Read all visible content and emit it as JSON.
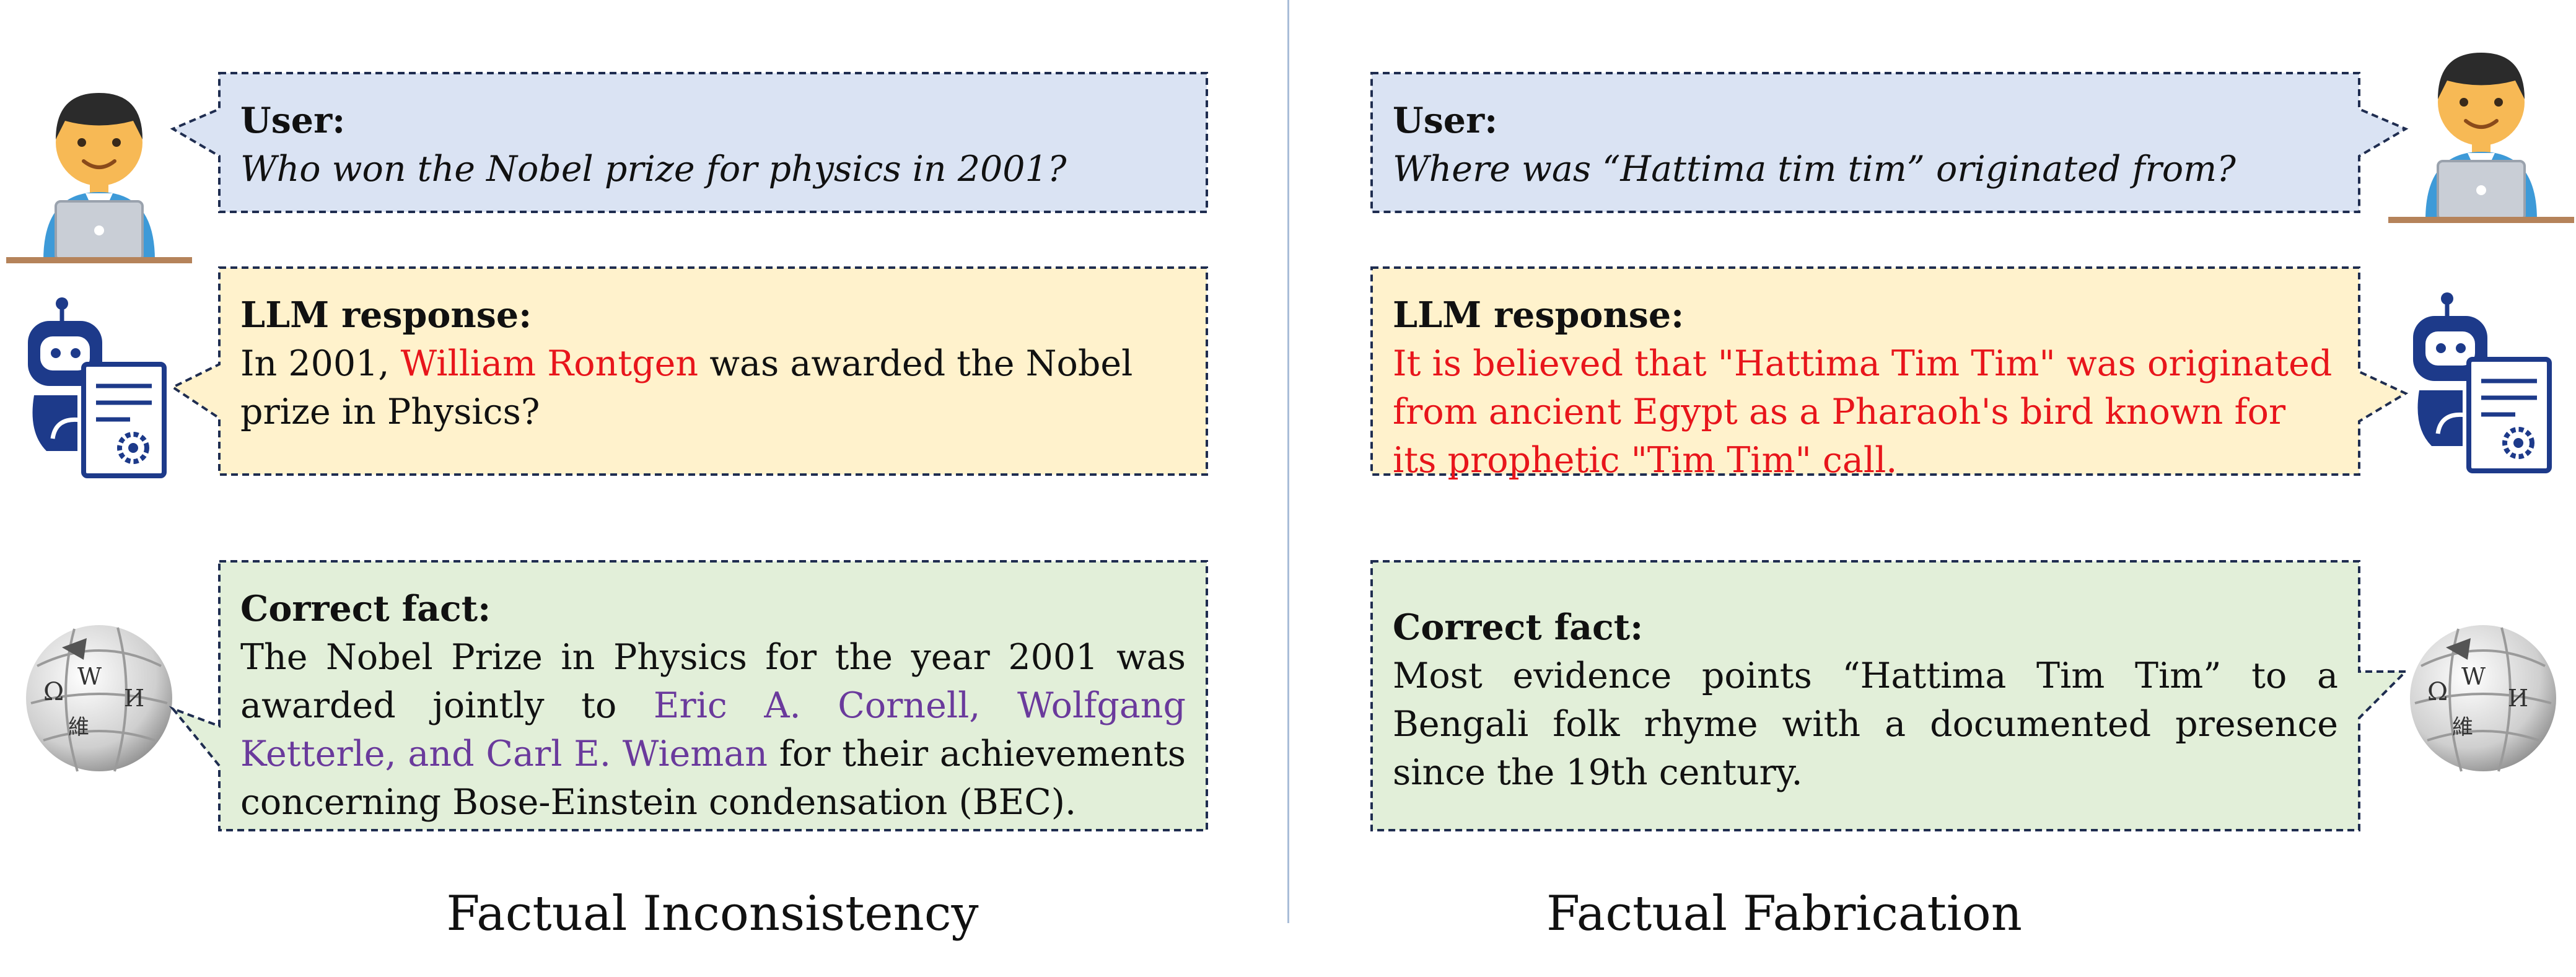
{
  "left_panel": {
    "user_label": "User:",
    "user_question": "Who won the Nobel prize for physics in 2001?",
    "llm_label": "LLM response:",
    "llm_text_1": " In 2001, ",
    "llm_wrong_name": "William Rontgen",
    "llm_text_2": " was awarded the Nobel prize in Physics?",
    "fact_label": "Correct fact:",
    "fact_text_1": "The Nobel Prize in Physics for the year 2001 was awarded jointly to ",
    "fact_names": "Eric A. Cornell, Wolfgang Ketterle, and Carl E. Wieman",
    "fact_text_2": " for their achievements concerning Bose-Einstein condensation (BEC).",
    "caption": "Factual Inconsistency"
  },
  "right_panel": {
    "user_label": "User:",
    "user_question": "Where was “Hattima tim tim” originated from?",
    "llm_label": "LLM response:",
    "llm_text": "It is believed that \"Hattima Tim Tim\"  was originated from ancient Egypt as a Pharaoh's bird known for its prophetic \"Tim Tim\" call.",
    "fact_label": "Correct fact:",
    "fact_text": "Most evidence points “Hattima Tim Tim” to a Bengali folk rhyme with a documented presence since the 19th century.",
    "caption": "Factual Fabrication"
  },
  "wiki_glyphs": [
    "Ω",
    "W",
    "И",
    "維"
  ],
  "colors": {
    "user_bubble": "#dae3f3",
    "llm_bubble": "#fff2cc",
    "fact_bubble": "#e2efd9",
    "border": "#1f2d50",
    "wrong": "#e8151b",
    "correct_names": "#6a3a9c",
    "robot": "#1d3a8a",
    "skin": "#f7b955",
    "shirt": "#3d9ad8"
  }
}
